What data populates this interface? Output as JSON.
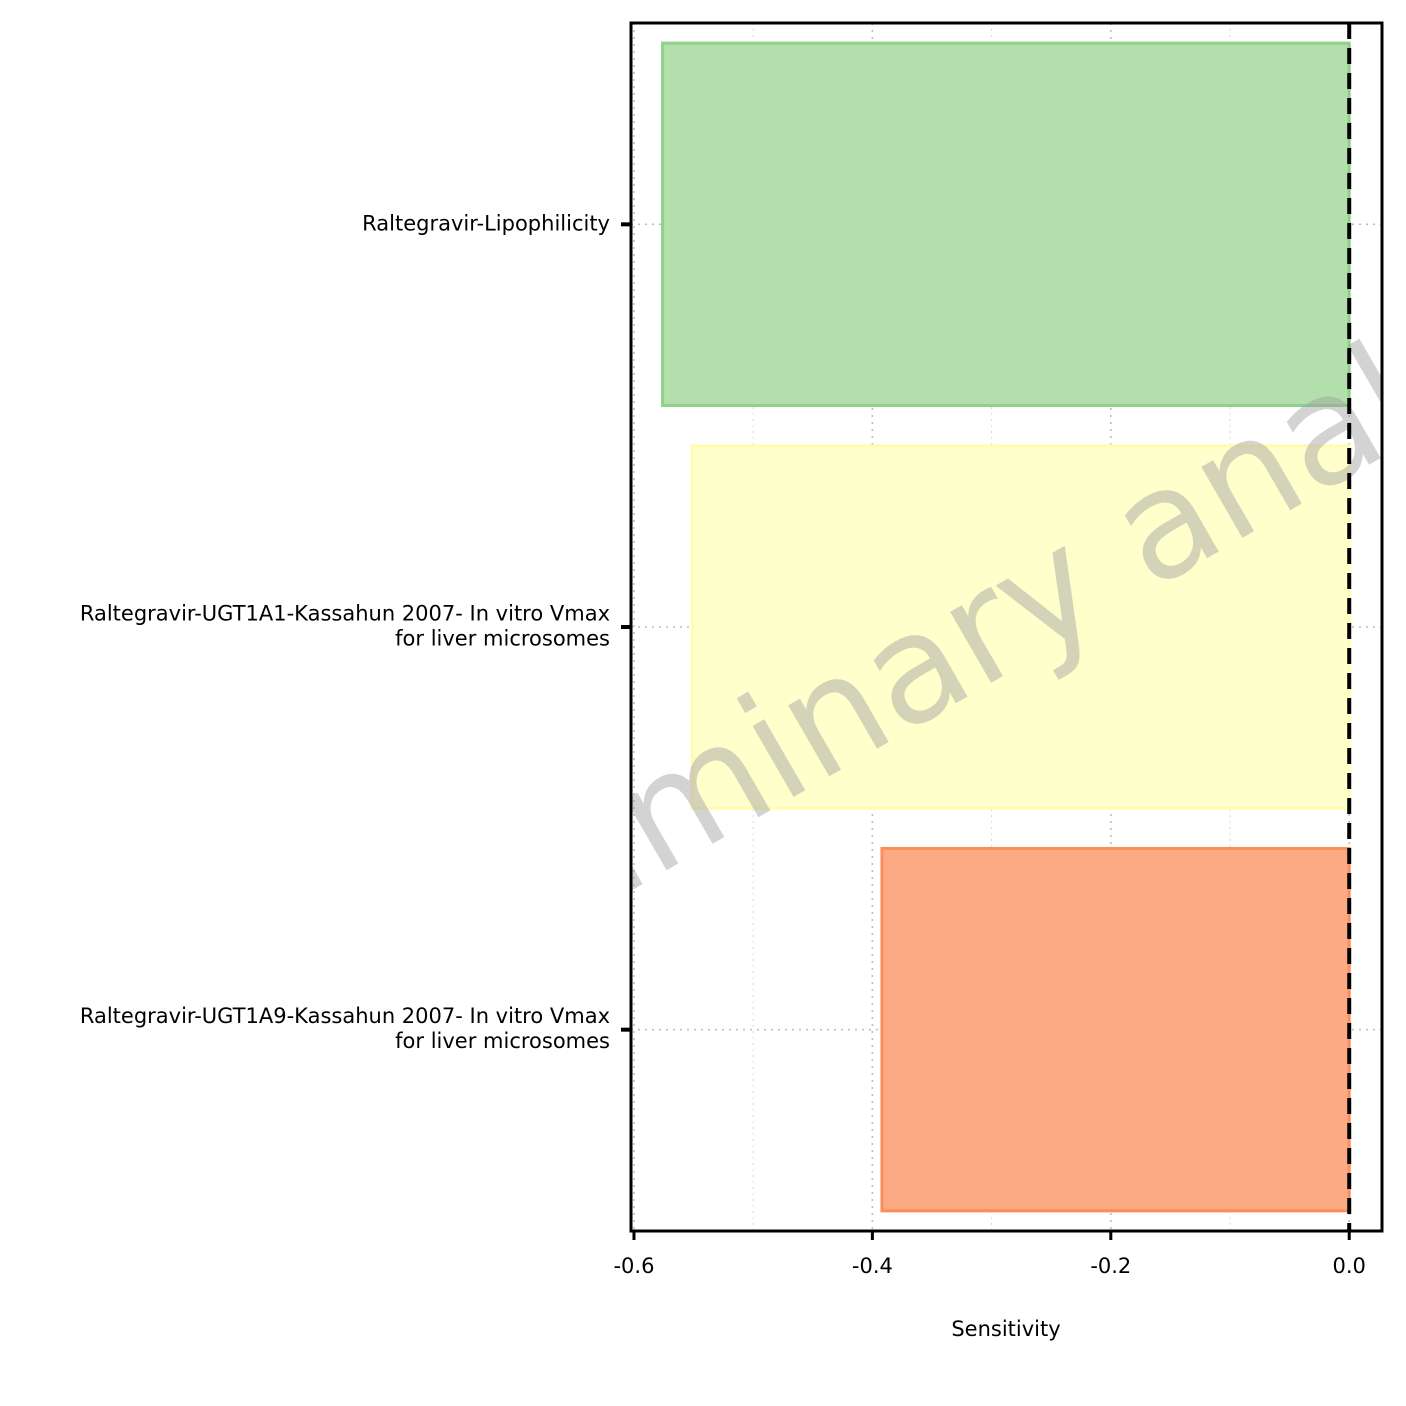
{
  "chart_data": {
    "type": "bar",
    "orientation": "horizontal",
    "categories": [
      "Raltegravir-Lipophilicity",
      "Raltegravir-UGT1A1-Kassahun 2007- In vitro Vmax\nfor liver microsomes",
      "Raltegravir-UGT1A9-Kassahun 2007- In vitro Vmax\nfor liver microsomes"
    ],
    "values": [
      -0.576,
      -0.551,
      -0.392
    ],
    "colors": [
      "#b2dfab",
      "#ffffcc",
      "#fcaa83"
    ],
    "edge_colors": [
      "#8fd08a",
      "#fffbb0",
      "#f88f5c"
    ],
    "title": "",
    "xlabel": "Sensitivity",
    "ylabel": "",
    "xlim": [
      -0.6025,
      0.0275
    ],
    "xticks": [
      -0.6,
      -0.4,
      -0.2,
      0.0
    ],
    "xtick_labels": [
      "-0.6",
      "-0.4",
      "-0.2",
      "0.0"
    ],
    "reference_line": {
      "x": 0.0,
      "style": "dashed",
      "color": "#000000"
    },
    "grid": true,
    "legend": "none",
    "watermark": "Preliminary analysis"
  }
}
